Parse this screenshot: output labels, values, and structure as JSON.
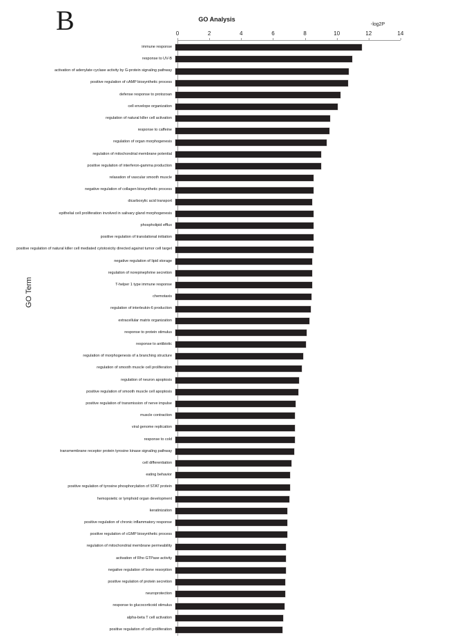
{
  "figure": {
    "panel_label": "B",
    "title": "GO Analysis",
    "x_axis_label": "-log2P",
    "y_axis_label": "GO Term"
  },
  "chart_data": {
    "type": "bar",
    "orientation": "horizontal",
    "title": "GO Analysis",
    "xlabel": "-log2P",
    "ylabel": "GO Term",
    "xlim": [
      0,
      14
    ],
    "xticks": [
      0,
      2,
      4,
      6,
      8,
      10,
      12,
      14
    ],
    "grid": false,
    "legend": false,
    "bar_color": "#231f20",
    "categories": [
      "immune response",
      "response to UV-B",
      "activation of adenylate cyclase activity by G-protein signaling pathway",
      "positive regulation of cAMP biosynthetic process",
      "defense response to protozoan",
      "cell envelope organization",
      "regulation of natural killer cell activation",
      "response to caffeine",
      "regulation of organ morphogenesis",
      "regulation of mitochondrial membrane potential",
      "positive regulation of interferon-gamma production",
      "relaxation of vascular smooth muscle",
      "negative regulation of collagen biosynthetic process",
      "dicarboxylic acid transport",
      "epithelial cell proliferation involved in salivary gland morphogenesis",
      "phospholipid efflux",
      "positive regulation of translational initiation",
      "positive regulation of natural killer cell mediated cytotoxicity directed against tumor cell target",
      "negative regulation of lipid storage",
      "regulation of norepinephrine secretion",
      "T-helper 1 type immune response",
      "chemotaxis",
      "regulation of interleukin-6 production",
      "extracellular matrix organization",
      "response to protein stimulus",
      "response to antibiotic",
      "regulation of morphogenesis of a branching structure",
      "regulation of smooth muscle cell proliferation",
      "regulation of neuron apoptosis",
      "positive regulation of smooth muscle cell apoptosis",
      "positive regulation of transmission of nerve impulse",
      "muscle contraction",
      "viral genome replication",
      "response to cold",
      "transmembrane receptor protein tyrosine kinase signaling pathway",
      "cell differentiation",
      "eating behavior",
      "positive regulation of tyrosine phosphorylation of STAT protein",
      "hemopoietic or lymphoid organ development",
      "keratinization",
      "positive regulation of chronic inflammatory response",
      "positive regulation of cGMP biosynthetic process",
      "regulation of mitochondrial membrane permeability",
      "activation of Rho GTPase activity",
      "negative regulation of bone resorption",
      "positive regulation of protein secretion",
      "neuroprotection",
      "response to glucocorticoid stimulus",
      "alpha-beta T cell activation",
      "positive regulation of cell proliferation"
    ],
    "values": [
      11.7,
      11.1,
      10.9,
      10.85,
      10.35,
      10.2,
      9.7,
      9.65,
      9.5,
      9.15,
      9.15,
      8.65,
      8.65,
      8.6,
      8.65,
      8.65,
      8.65,
      8.65,
      8.6,
      8.6,
      8.6,
      8.55,
      8.5,
      8.4,
      8.25,
      8.2,
      8.0,
      7.95,
      7.75,
      7.7,
      7.55,
      7.5,
      7.5,
      7.5,
      7.45,
      7.3,
      7.2,
      7.2,
      7.15,
      7.0,
      7.0,
      7.0,
      6.95,
      6.95,
      6.95,
      6.9,
      6.9,
      6.85,
      6.75,
      6.7
    ]
  }
}
